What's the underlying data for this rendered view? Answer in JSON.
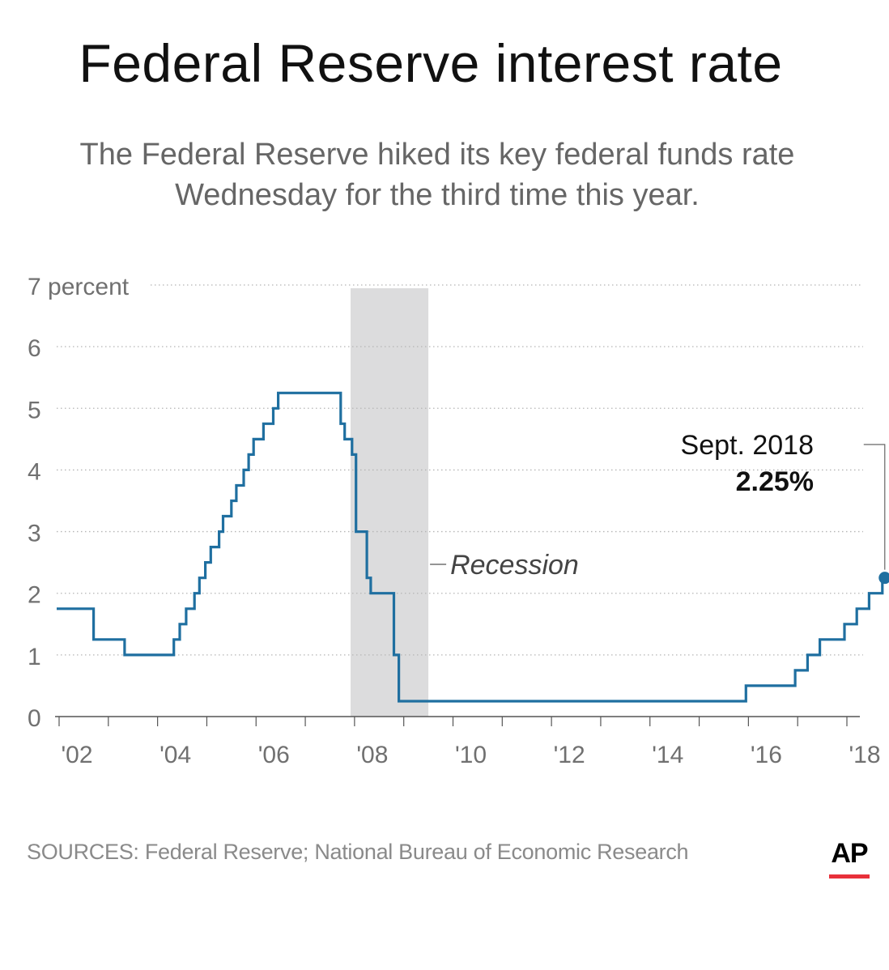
{
  "title": "Federal Reserve interest rate",
  "subtitle_lines": [
    "The Federal Reserve hiked its key federal funds rate",
    "Wednesday for the third time this year."
  ],
  "source": "SOURCES: Federal Reserve; National Bureau of Economic Research",
  "logo": {
    "text": "AP",
    "bar_color": "#e8303a"
  },
  "colors": {
    "line": "#1f6fa0",
    "recession": "#dcdcdd",
    "grid": "#b5b5b5",
    "axis": "#555555",
    "tick_text": "#707070"
  },
  "chart_data": {
    "type": "line",
    "step": true,
    "title": "Federal Reserve interest rate",
    "ylabel": "percent",
    "ylim": [
      0,
      7
    ],
    "xlim": [
      2001.95,
      2018.8
    ],
    "y_ticks": [
      {
        "value": 7,
        "label": "7 percent"
      },
      {
        "value": 6,
        "label": "6"
      },
      {
        "value": 5,
        "label": "5"
      },
      {
        "value": 4,
        "label": "4"
      },
      {
        "value": 3,
        "label": "3"
      },
      {
        "value": 2,
        "label": "2"
      },
      {
        "value": 1,
        "label": "1"
      },
      {
        "value": 0,
        "label": "0"
      }
    ],
    "x_ticks": [
      {
        "value": 2002,
        "label": "'02"
      },
      {
        "value": 2004,
        "label": "'04"
      },
      {
        "value": 2006,
        "label": "'06"
      },
      {
        "value": 2008,
        "label": "'08"
      },
      {
        "value": 2010,
        "label": "'10"
      },
      {
        "value": 2012,
        "label": "'12"
      },
      {
        "value": 2014,
        "label": "'14"
      },
      {
        "value": 2016,
        "label": "'16"
      },
      {
        "value": 2018,
        "label": "'18"
      }
    ],
    "series": [
      {
        "values": [
          {
            "x": 2001.95,
            "y": 1.75
          },
          {
            "x": 2002.7,
            "y": 1.25
          },
          {
            "x": 2003.33,
            "y": 1.0
          },
          {
            "x": 2004.33,
            "y": 1.25
          },
          {
            "x": 2004.45,
            "y": 1.5
          },
          {
            "x": 2004.58,
            "y": 1.75
          },
          {
            "x": 2004.75,
            "y": 2.0
          },
          {
            "x": 2004.85,
            "y": 2.25
          },
          {
            "x": 2004.97,
            "y": 2.5
          },
          {
            "x": 2005.08,
            "y": 2.75
          },
          {
            "x": 2005.25,
            "y": 3.0
          },
          {
            "x": 2005.33,
            "y": 3.25
          },
          {
            "x": 2005.5,
            "y": 3.5
          },
          {
            "x": 2005.6,
            "y": 3.75
          },
          {
            "x": 2005.75,
            "y": 4.0
          },
          {
            "x": 2005.85,
            "y": 4.25
          },
          {
            "x": 2005.95,
            "y": 4.5
          },
          {
            "x": 2006.15,
            "y": 4.75
          },
          {
            "x": 2006.35,
            "y": 5.0
          },
          {
            "x": 2006.45,
            "y": 5.25
          },
          {
            "x": 2007.72,
            "y": 4.75
          },
          {
            "x": 2007.8,
            "y": 4.5
          },
          {
            "x": 2007.95,
            "y": 4.25
          },
          {
            "x": 2008.03,
            "y": 3.0
          },
          {
            "x": 2008.25,
            "y": 2.25
          },
          {
            "x": 2008.33,
            "y": 2.0
          },
          {
            "x": 2008.8,
            "y": 1.0
          },
          {
            "x": 2008.9,
            "y": 0.25
          },
          {
            "x": 2015.95,
            "y": 0.5
          },
          {
            "x": 2016.95,
            "y": 0.75
          },
          {
            "x": 2017.2,
            "y": 1.0
          },
          {
            "x": 2017.45,
            "y": 1.25
          },
          {
            "x": 2017.95,
            "y": 1.5
          },
          {
            "x": 2018.2,
            "y": 1.75
          },
          {
            "x": 2018.45,
            "y": 2.0
          },
          {
            "x": 2018.72,
            "y": 2.25
          }
        ]
      }
    ],
    "shaded_regions": [
      {
        "x0": 2007.92,
        "x1": 2009.5,
        "label": "Recession"
      }
    ],
    "annotations": [
      {
        "x": 2018.72,
        "y": 2.25,
        "line1": "Sept. 2018",
        "line2": "2.25%"
      }
    ],
    "grid": true,
    "grid_style": "dotted horizontal"
  }
}
